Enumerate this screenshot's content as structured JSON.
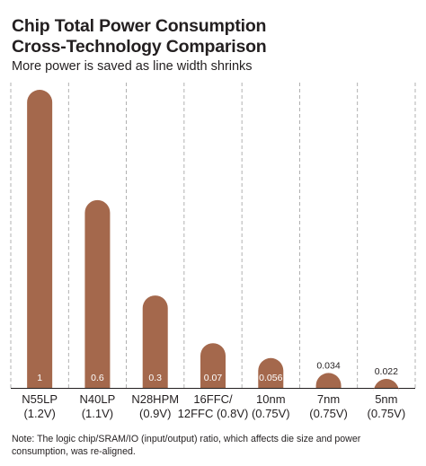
{
  "header": {
    "title_line1": "Chip Total Power Consumption",
    "title_line2": "Cross-Technology Comparison",
    "subtitle": "More power is saved as line width shrinks"
  },
  "note": "Note: The logic chip/SRAM/IO (input/output) ratio, which affects die size and power consumption, was re-aligned.",
  "colors": {
    "bar": "#a4684c",
    "grid": "#9e9e9e",
    "text": "#231f20",
    "inside_label": "#ffffff"
  },
  "chart_data": {
    "type": "bar",
    "title": "Chip Total Power Consumption Cross-Technology Comparison",
    "subtitle": "More power is saved as line width shrinks",
    "categories": [
      [
        "N55LP",
        "(1.2V)"
      ],
      [
        "N40LP",
        "(1.1V)"
      ],
      [
        "N28HPM",
        "(0.9V)"
      ],
      [
        "16FFC/",
        "12FFC (0.8V)"
      ],
      [
        "10nm",
        "(0.75V)"
      ],
      [
        "7nm",
        "(0.75V)"
      ],
      [
        "5nm",
        "(0.75V)"
      ]
    ],
    "values": [
      1,
      0.6,
      0.3,
      0.07,
      0.056,
      0.034,
      0.022
    ],
    "value_labels": [
      "1",
      "0.6",
      "0.3",
      "0.07",
      "0.056",
      "0.034",
      "0.022"
    ],
    "bar_heights_relative": [
      1,
      0.63,
      0.31,
      0.15,
      0.1,
      0.05,
      0.03
    ],
    "label_inside": [
      true,
      true,
      true,
      true,
      true,
      false,
      false
    ],
    "ylim": [
      0,
      1
    ],
    "grid": "vertical dashed separators",
    "legend": "none"
  }
}
